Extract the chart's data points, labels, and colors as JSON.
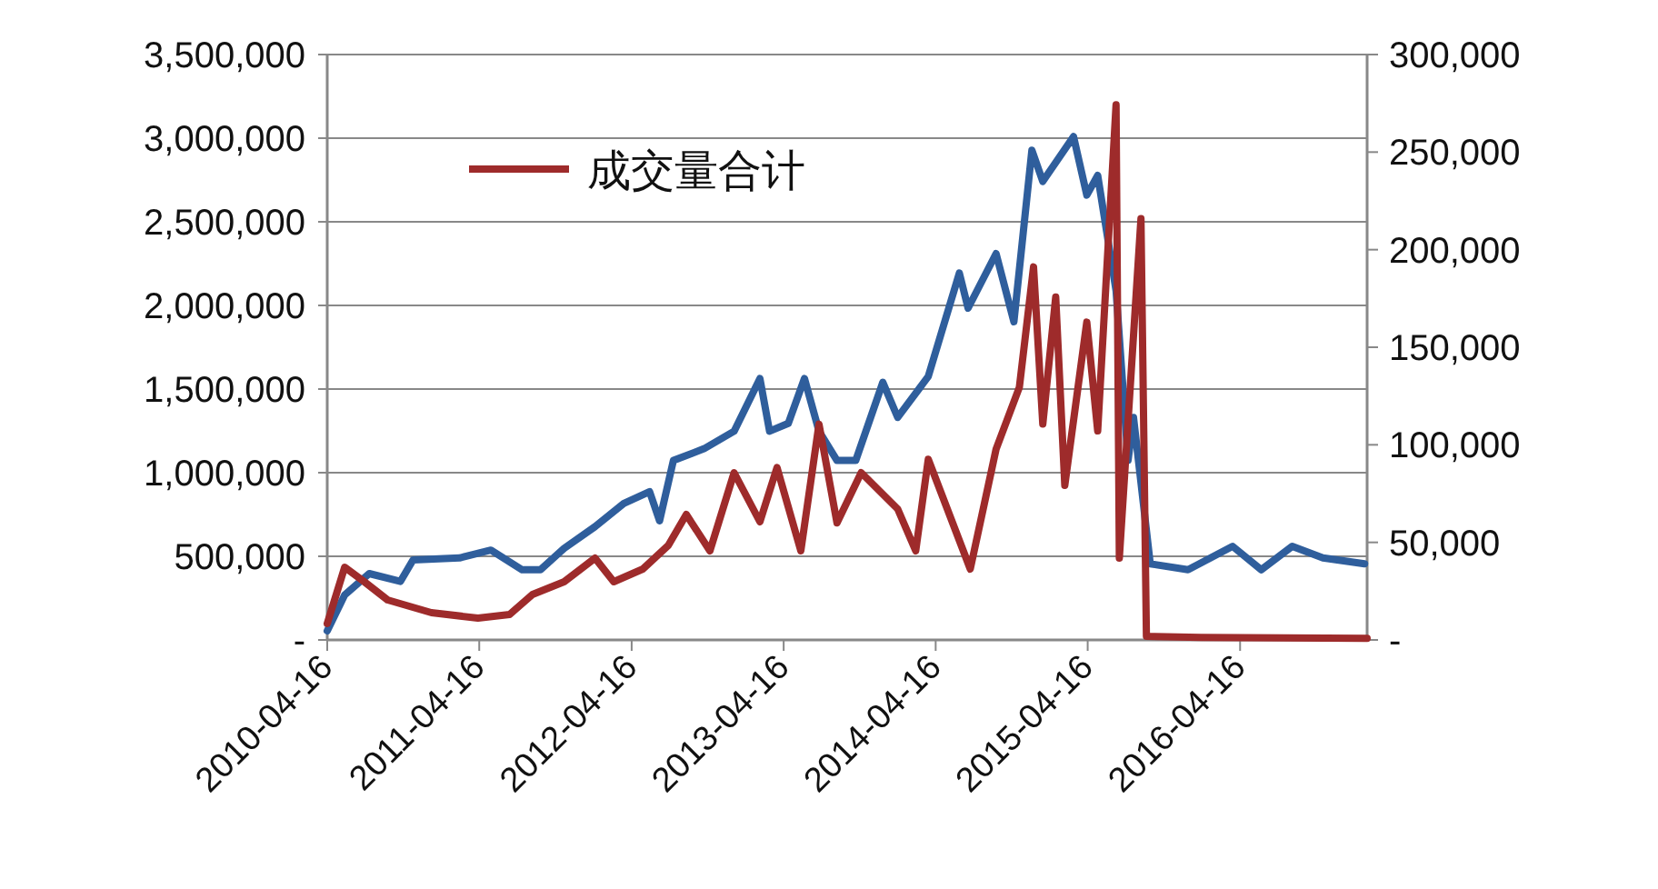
{
  "chart_data": {
    "type": "line",
    "xlim": [
      "2010-04-16",
      "2017-02-15"
    ],
    "xticks": [
      "2010-04-16",
      "2011-04-16",
      "2012-04-16",
      "2013-04-16",
      "2014-04-16",
      "2015-04-16",
      "2016-04-16"
    ],
    "ylim": [
      0,
      3500000
    ],
    "yticks": [
      {
        "value": 0,
        "label": "-"
      },
      {
        "value": 500000,
        "label": "500,000"
      },
      {
        "value": 1000000,
        "label": "1,000,000"
      },
      {
        "value": 1500000,
        "label": "1,500,000"
      },
      {
        "value": 2000000,
        "label": "2,000,000"
      },
      {
        "value": 2500000,
        "label": "2,500,000"
      },
      {
        "value": 3000000,
        "label": "3,000,000"
      },
      {
        "value": 3500000,
        "label": "3,500,000"
      }
    ],
    "y2lim": [
      0,
      300000
    ],
    "y2ticks": [
      {
        "value": 0,
        "label": "-"
      },
      {
        "value": 50000,
        "label": "50,000"
      },
      {
        "value": 100000,
        "label": "100,000"
      },
      {
        "value": 150000,
        "label": "150,000"
      },
      {
        "value": 200000,
        "label": "200,000"
      },
      {
        "value": 250000,
        "label": "250,000"
      },
      {
        "value": 300000,
        "label": "300,000"
      }
    ],
    "grid": "y",
    "legend": "top left",
    "line_style": "solid",
    "series": [
      {
        "name": "成交量合计",
        "color": "#9e2b2b",
        "x": [
          "2010-04-16",
          "2010-05-28",
          "2010-07-14",
          "2010-09-08",
          "2010-12-22",
          "2011-04-13",
          "2011-06-28",
          "2011-08-22",
          "2011-11-06",
          "2012-01-19",
          "2012-03-04",
          "2012-05-13",
          "2012-07-13",
          "2012-08-25",
          "2012-10-21",
          "2012-12-18",
          "2013-02-18",
          "2013-03-31",
          "2013-05-27",
          "2013-07-10",
          "2013-08-22",
          "2013-10-19",
          "2014-01-15",
          "2014-02-27",
          "2014-03-29",
          "2014-07-08",
          "2014-09-08",
          "2014-11-03",
          "2014-12-07",
          "2014-12-29",
          "2015-01-29",
          "2015-02-20",
          "2015-04-14",
          "2015-05-10",
          "2015-06-23",
          "2015-07-01",
          "2015-08-22",
          "2015-09-04",
          "2016-01-13",
          "2017-02-15"
        ],
        "values": [
          98000,
          435000,
          348000,
          239000,
          163000,
          130000,
          152000,
          272000,
          348000,
          489000,
          348000,
          424000,
          565000,
          750000,
          533000,
          1000000,
          707000,
          1030000,
          533000,
          1290000,
          700000,
          1000000,
          783000,
          533000,
          1080000,
          424000,
          1140000,
          1510000,
          2230000,
          1290000,
          2050000,
          924000,
          1900000,
          1250000,
          3200000,
          489000,
          2520000,
          22000,
          15000,
          10000
        ]
      },
      {
        "color": "#2f5e9c",
        "axis": "y2",
        "x": [
          "2010-04-16",
          "2010-05-28",
          "2010-07-26",
          "2010-10-09",
          "2010-11-08",
          "2011-02-28",
          "2011-05-14",
          "2011-07-28",
          "2011-09-10",
          "2011-11-06",
          "2012-01-19",
          "2012-03-28",
          "2012-05-29",
          "2012-06-22",
          "2012-07-25",
          "2012-10-07",
          "2012-12-18",
          "2013-02-18",
          "2013-03-13",
          "2013-04-27",
          "2013-06-05",
          "2013-07-10",
          "2013-08-22",
          "2013-10-06",
          "2013-12-10",
          "2014-01-15",
          "2014-03-29",
          "2014-06-12",
          "2014-07-03",
          "2014-09-08",
          "2014-10-21",
          "2014-12-03",
          "2014-12-29",
          "2015-03-13",
          "2015-04-14",
          "2015-05-10",
          "2015-06-23",
          "2015-07-22",
          "2015-08-04",
          "2015-09-13",
          "2015-12-13",
          "2016-03-29",
          "2016-06-06",
          "2016-08-19",
          "2016-11-01",
          "2017-02-09"
        ],
        "values": [
          4700,
          23000,
          34000,
          30000,
          41000,
          42000,
          46000,
          36000,
          36000,
          47000,
          58000,
          70000,
          76000,
          61000,
          92000,
          98000,
          107000,
          134000,
          107000,
          111000,
          134000,
          107000,
          92000,
          92000,
          132000,
          114000,
          135000,
          188000,
          170000,
          198000,
          163000,
          251000,
          235000,
          258000,
          228000,
          238000,
          179000,
          92000,
          114000,
          39000,
          36000,
          48000,
          36000,
          48000,
          42000,
          39000
        ]
      }
    ]
  }
}
